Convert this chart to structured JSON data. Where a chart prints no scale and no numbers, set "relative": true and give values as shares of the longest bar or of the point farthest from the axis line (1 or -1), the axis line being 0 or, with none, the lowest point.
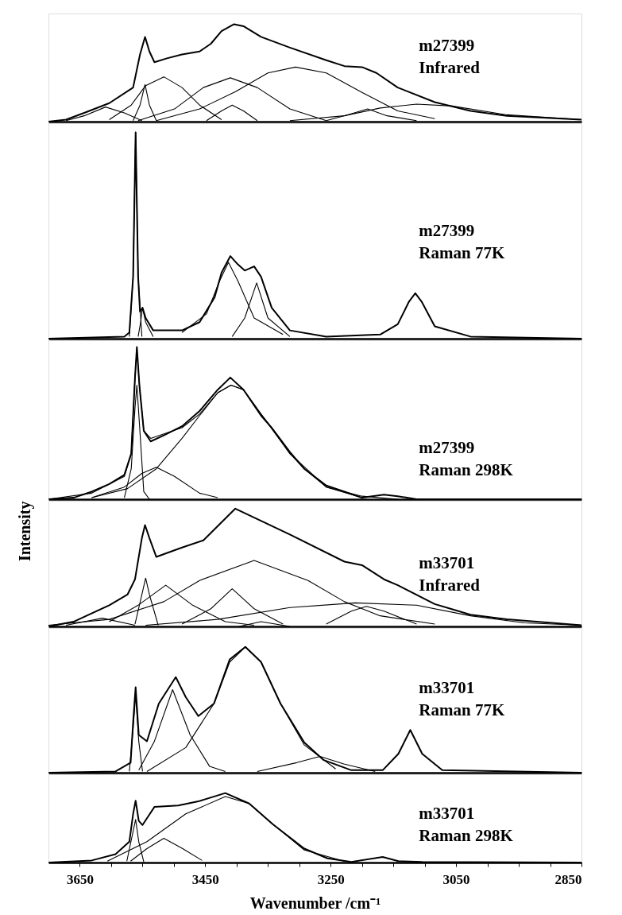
{
  "chart_data": [
    {
      "type": "line",
      "relative": true,
      "xlim": [
        3700,
        2850
      ],
      "tick_labels": false,
      "annotations": [
        "m27399",
        "Infrared"
      ],
      "series": [
        {
          "color": "#000000",
          "x": [
            3700,
            3672,
            3643,
            3603,
            3565,
            3554,
            3546,
            3539,
            3531,
            3511,
            3487,
            3459,
            3441,
            3424,
            3404,
            3389,
            3361,
            3315,
            3257,
            3228,
            3200,
            3177,
            3143,
            3084,
            3027,
            2969,
            2912,
            2850
          ],
          "values": [
            0,
            0.02,
            0.09,
            0.19,
            0.35,
            0.69,
            0.87,
            0.72,
            0.61,
            0.65,
            0.69,
            0.72,
            0.8,
            0.93,
            1,
            0.98,
            0.87,
            0.76,
            0.63,
            0.57,
            0.56,
            0.5,
            0.35,
            0.2,
            0.11,
            0.06,
            0.04,
            0.02
          ]
        },
        {
          "color": "#000000",
          "x": [
            3672,
            3643,
            3609,
            3579,
            3551
          ],
          "values": [
            0.01,
            0.06,
            0.15,
            0.09,
            0.01
          ]
        },
        {
          "color": "#000000",
          "x": [
            3565,
            3554,
            3546,
            3539,
            3528
          ],
          "values": [
            0.01,
            0.17,
            0.38,
            0.17,
            0.01
          ]
        },
        {
          "color": "#000000",
          "x": [
            3603,
            3568,
            3545,
            3516,
            3487,
            3459,
            3424
          ],
          "values": [
            0.02,
            0.17,
            0.37,
            0.46,
            0.35,
            0.17,
            0.02
          ]
        },
        {
          "color": "#000000",
          "x": [
            3557,
            3499,
            3453,
            3410,
            3367,
            3315,
            3257
          ],
          "values": [
            0.01,
            0.13,
            0.35,
            0.45,
            0.35,
            0.13,
            0.01
          ]
        },
        {
          "color": "#000000",
          "x": [
            3448,
            3424,
            3407,
            3389,
            3367
          ],
          "values": [
            0.01,
            0.11,
            0.17,
            0.11,
            0.01
          ]
        },
        {
          "color": "#000000",
          "x": [
            3528,
            3459,
            3401,
            3350,
            3306,
            3257,
            3200,
            3143,
            3084
          ],
          "values": [
            0.01,
            0.13,
            0.31,
            0.5,
            0.56,
            0.5,
            0.3,
            0.11,
            0.03
          ]
        },
        {
          "color": "#000000",
          "x": [
            3257,
            3223,
            3191,
            3160,
            3113
          ],
          "values": [
            0.01,
            0.07,
            0.13,
            0.06,
            0.01
          ]
        },
        {
          "color": "#000000",
          "x": [
            3315,
            3228,
            3171,
            3113,
            3056,
            2969,
            2850
          ],
          "values": [
            0.01,
            0.06,
            0.14,
            0.18,
            0.16,
            0.07,
            0.02
          ]
        }
      ]
    },
    {
      "type": "line",
      "relative": true,
      "xlim": [
        3700,
        2850
      ],
      "tick_labels": false,
      "annotations": [
        "m27399",
        "Raman 77K"
      ],
      "series": [
        {
          "color": "#000000",
          "x": [
            3700,
            3579,
            3571,
            3565,
            3561,
            3557,
            3554,
            3550,
            3545,
            3533,
            3487,
            3459,
            3435,
            3424,
            3410,
            3398,
            3387,
            3372,
            3361,
            3344,
            3315,
            3257,
            3171,
            3143,
            3125,
            3115,
            3105,
            3084,
            3027,
            2850
          ],
          "values": [
            0,
            0.01,
            0.03,
            0.3,
            1,
            0.3,
            0.13,
            0.15,
            0.1,
            0.04,
            0.04,
            0.08,
            0.2,
            0.32,
            0.4,
            0.36,
            0.33,
            0.35,
            0.3,
            0.15,
            0.04,
            0.01,
            0.02,
            0.07,
            0.18,
            0.22,
            0.18,
            0.06,
            0.01,
            0
          ]
        },
        {
          "color": "#000000",
          "x": [
            3571,
            3565,
            3561,
            3557,
            3551
          ],
          "values": [
            0.01,
            0.3,
            1,
            0.3,
            0.01
          ]
        },
        {
          "color": "#000000",
          "x": [
            3557,
            3553,
            3550,
            3545,
            3533
          ],
          "values": [
            0.01,
            0.08,
            0.15,
            0.08,
            0.01
          ]
        },
        {
          "color": "#000000",
          "x": [
            3487,
            3448,
            3427,
            3413,
            3398,
            3372,
            3326
          ],
          "values": [
            0.03,
            0.12,
            0.28,
            0.37,
            0.28,
            0.1,
            0.02
          ]
        },
        {
          "color": "#000000",
          "x": [
            3407,
            3387,
            3368,
            3350,
            3315
          ],
          "values": [
            0.01,
            0.1,
            0.27,
            0.1,
            0.01
          ]
        }
      ]
    },
    {
      "type": "line",
      "relative": true,
      "xlim": [
        3700,
        2850
      ],
      "tick_labels": false,
      "annotations": [
        "m27399",
        "Raman 298K"
      ],
      "series": [
        {
          "color": "#000000",
          "x": [
            3700,
            3660,
            3631,
            3603,
            3579,
            3568,
            3562,
            3559,
            3555,
            3548,
            3537,
            3516,
            3487,
            3459,
            3430,
            3410,
            3389,
            3361,
            3344,
            3315,
            3292,
            3257,
            3228,
            3200,
            3165,
            3143,
            3113,
            2850
          ],
          "values": [
            0,
            0.01,
            0.05,
            0.1,
            0.16,
            0.3,
            0.8,
            1.0,
            0.75,
            0.45,
            0.38,
            0.42,
            0.48,
            0.58,
            0.72,
            0.8,
            0.72,
            0.55,
            0.47,
            0.31,
            0.2,
            0.09,
            0.05,
            0.01,
            0.03,
            0.02,
            0,
            0
          ]
        },
        {
          "color": "#000000",
          "x": [
            3700,
            3631,
            3579,
            3568,
            3562,
            3559,
            3555,
            3548,
            3537,
            3487,
            3459,
            3430,
            3409,
            3389,
            3361,
            3344,
            3315,
            3292,
            3257,
            3200,
            3143
          ],
          "values": [
            0,
            0.04,
            0.15,
            0.3,
            0.8,
            0.98,
            0.75,
            0.45,
            0.4,
            0.47,
            0.56,
            0.7,
            0.75,
            0.72,
            0.56,
            0.47,
            0.3,
            0.2,
            0.08,
            0.02,
            0
          ]
        },
        {
          "color": "#000000",
          "x": [
            3579,
            3568,
            3562,
            3559,
            3555,
            3548,
            3539
          ],
          "values": [
            0.01,
            0.2,
            0.6,
            0.75,
            0.5,
            0.05,
            0
          ]
        },
        {
          "color": "#000000",
          "x": [
            3631,
            3579,
            3551,
            3528,
            3499,
            3459,
            3430
          ],
          "values": [
            0.01,
            0.08,
            0.17,
            0.21,
            0.15,
            0.04,
            0.01
          ]
        },
        {
          "color": "#000000",
          "x": [
            3631,
            3574,
            3528,
            3487,
            3459,
            3430,
            3409,
            3389,
            3361,
            3315,
            3257,
            3200
          ],
          "values": [
            0.01,
            0.07,
            0.2,
            0.4,
            0.55,
            0.7,
            0.75,
            0.72,
            0.56,
            0.3,
            0.08,
            0.01
          ]
        }
      ]
    },
    {
      "type": "line",
      "relative": true,
      "xlim": [
        3700,
        2850
      ],
      "tick_labels": false,
      "ylabel": "Intensity",
      "annotations": [
        "m33701",
        "Infrared"
      ],
      "series": [
        {
          "color": "#000000",
          "x": [
            3700,
            3660,
            3603,
            3574,
            3562,
            3551,
            3546,
            3539,
            3528,
            3487,
            3453,
            3402,
            3315,
            3228,
            3200,
            3165,
            3143,
            3084,
            3027,
            2969,
            2850
          ],
          "values": [
            0,
            0.04,
            0.18,
            0.27,
            0.4,
            0.75,
            0.86,
            0.75,
            0.59,
            0.67,
            0.73,
            1.0,
            0.78,
            0.55,
            0.52,
            0.4,
            0.35,
            0.19,
            0.1,
            0.06,
            0.01
          ]
        },
        {
          "color": "#000000",
          "x": [
            3672,
            3614,
            3562
          ],
          "values": [
            0.01,
            0.07,
            0.01
          ]
        },
        {
          "color": "#000000",
          "x": [
            3562,
            3551,
            3545,
            3539,
            3525
          ],
          "values": [
            0.02,
            0.27,
            0.41,
            0.27,
            0.01
          ]
        },
        {
          "color": "#000000",
          "x": [
            3603,
            3557,
            3513,
            3470,
            3418,
            3372
          ],
          "values": [
            0.04,
            0.18,
            0.35,
            0.18,
            0.04,
            0.01
          ]
        },
        {
          "color": "#000000",
          "x": [
            3487,
            3441,
            3407,
            3372,
            3326
          ],
          "values": [
            0.02,
            0.15,
            0.32,
            0.15,
            0.02
          ]
        },
        {
          "color": "#000000",
          "x": [
            3396,
            3361,
            3315
          ],
          "values": [
            0,
            0.04,
            0
          ]
        },
        {
          "color": "#000000",
          "x": [
            3700,
            3603,
            3516,
            3459,
            3372,
            3286,
            3228,
            3171,
            3084
          ],
          "values": [
            0.01,
            0.06,
            0.21,
            0.39,
            0.56,
            0.39,
            0.21,
            0.09,
            0.02
          ]
        },
        {
          "color": "#000000",
          "x": [
            3257,
            3217,
            3193,
            3165,
            3113
          ],
          "values": [
            0.02,
            0.13,
            0.17,
            0.13,
            0.02
          ]
        },
        {
          "color": "#000000",
          "x": [
            3545,
            3430,
            3315,
            3211,
            3113,
            3027,
            2941,
            2850
          ],
          "values": [
            0.01,
            0.06,
            0.16,
            0.2,
            0.18,
            0.09,
            0.03,
            0.01
          ]
        }
      ]
    },
    {
      "type": "line",
      "relative": true,
      "xlim": [
        3700,
        2850
      ],
      "tick_labels": false,
      "annotations": [
        "m33701",
        "Raman 77K"
      ],
      "series": [
        {
          "color": "#000000",
          "x": [
            3700,
            3593,
            3569,
            3565,
            3561,
            3556,
            3543,
            3524,
            3497,
            3481,
            3461,
            3436,
            3411,
            3386,
            3361,
            3330,
            3292,
            3261,
            3217,
            3167,
            3142,
            3123,
            3104,
            3072,
            2850
          ],
          "values": [
            0,
            0.01,
            0.08,
            0.4,
            0.68,
            0.3,
            0.25,
            0.55,
            0.76,
            0.6,
            0.45,
            0.55,
            0.9,
            1.0,
            0.88,
            0.55,
            0.24,
            0.1,
            0.02,
            0.02,
            0.15,
            0.34,
            0.15,
            0.02,
            0
          ]
        },
        {
          "color": "#000000",
          "x": [
            3571,
            3565,
            3561,
            3556,
            3550
          ],
          "values": [
            0.01,
            0.35,
            0.62,
            0.25,
            0.01
          ]
        },
        {
          "color": "#000000",
          "x": [
            3556,
            3531,
            3502,
            3474,
            3443,
            3418
          ],
          "values": [
            0.02,
            0.25,
            0.66,
            0.3,
            0.05,
            0.01
          ]
        },
        {
          "color": "#000000",
          "x": [
            3543,
            3481,
            3436,
            3411,
            3386,
            3361,
            3330,
            3292,
            3242
          ],
          "values": [
            0.01,
            0.2,
            0.55,
            0.88,
            1.0,
            0.88,
            0.55,
            0.22,
            0.03
          ]
        },
        {
          "color": "#000000",
          "x": [
            3367,
            3304,
            3267,
            3229,
            3179
          ],
          "values": [
            0.01,
            0.08,
            0.13,
            0.07,
            0.01
          ]
        }
      ]
    },
    {
      "type": "line",
      "relative": true,
      "xlim": [
        3700,
        2850
      ],
      "xticks": [
        3650,
        {
          "value": 3600,
          "label": null
        },
        {
          "value": 3550,
          "label": null
        },
        {
          "value": 3500,
          "label": null
        },
        3450,
        {
          "value": 3400,
          "label": null
        },
        {
          "value": 3350,
          "label": null
        },
        {
          "value": 3300,
          "label": null
        },
        3250,
        {
          "value": 3200,
          "label": null
        },
        {
          "value": 3150,
          "label": null
        },
        {
          "value": 3100,
          "label": null
        },
        3050,
        {
          "value": 3000,
          "label": null
        },
        {
          "value": 2950,
          "label": null
        },
        {
          "value": 2900,
          "label": null
        },
        2850
      ],
      "tick_labels": "x",
      "xlabel": "Wavenumber /cm⁻¹",
      "annotations": [
        "m33701",
        "Raman 298K"
      ],
      "series": [
        {
          "color": "#000000",
          "x": [
            3700,
            3631,
            3593,
            3571,
            3565,
            3561,
            3556,
            3550,
            3531,
            3493,
            3461,
            3418,
            3380,
            3342,
            3292,
            3255,
            3217,
            3167,
            3142,
            3104,
            2850
          ],
          "values": [
            0,
            0.03,
            0.12,
            0.3,
            0.7,
            0.89,
            0.6,
            0.54,
            0.8,
            0.82,
            0.88,
            1.0,
            0.85,
            0.55,
            0.2,
            0.06,
            0.01,
            0.08,
            0.02,
            0.01,
            0
          ]
        },
        {
          "color": "#000000",
          "x": [
            3575,
            3565,
            3561,
            3556,
            3548
          ],
          "values": [
            0.02,
            0.45,
            0.62,
            0.3,
            0.01
          ]
        },
        {
          "color": "#000000",
          "x": [
            3569,
            3543,
            3516,
            3486,
            3455
          ],
          "values": [
            0.02,
            0.2,
            0.35,
            0.2,
            0.03
          ]
        },
        {
          "color": "#000000",
          "x": [
            3606,
            3543,
            3481,
            3418,
            3380,
            3342,
            3292,
            3229
          ],
          "values": [
            0.02,
            0.3,
            0.7,
            0.95,
            0.85,
            0.55,
            0.18,
            0.02
          ]
        }
      ]
    }
  ]
}
